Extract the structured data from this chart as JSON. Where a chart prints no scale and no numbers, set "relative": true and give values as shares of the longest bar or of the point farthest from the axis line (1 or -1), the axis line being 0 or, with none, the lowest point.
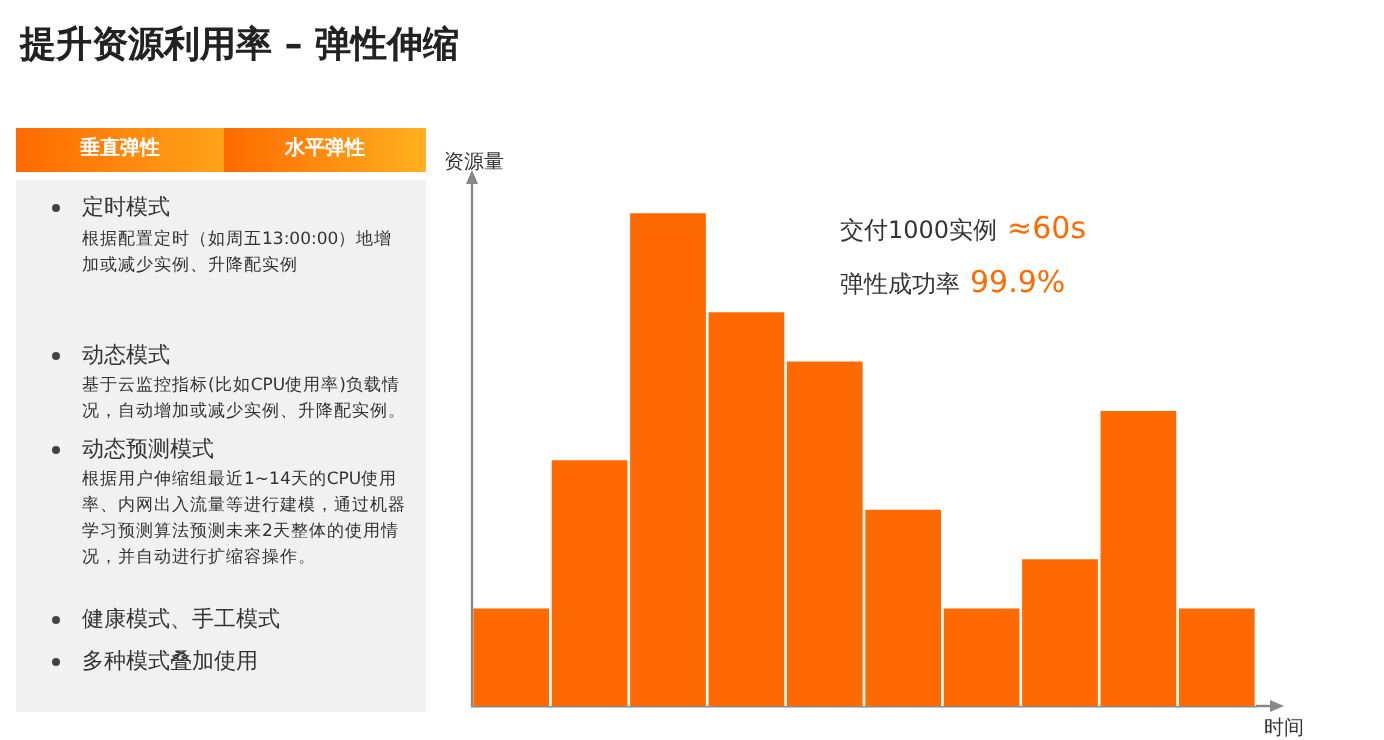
{
  "chart_data": {
    "type": "bar",
    "title": "提升资源利用率 – 弹性伸缩",
    "xlabel": "时间",
    "ylabel": "资源量",
    "relative": true,
    "grid": false,
    "legend": false,
    "categories": [
      null,
      null,
      null,
      null,
      null,
      null,
      null,
      null,
      null,
      null
    ],
    "values": [
      0.2,
      0.5,
      1,
      0.8,
      0.7,
      0.4,
      0.2,
      0.3,
      0.6,
      0.2
    ],
    "color": "#ff6a00",
    "annotations": [
      "垂直弹性",
      "水平弹性",
      "定时模式",
      "根据配置定时（如周五13:00:00）地增加或减少实例、升降配实例",
      "动态模式",
      "基于云监控指标(比如CPU使用率)负载情况，自动增加或减少实例、升降配实例。",
      "动态预测模式",
      "根据用户伸缩组最近1~14天的CPU使用率、内网出入流量等进行建模，通过机器学习预测算法预测未来2天整体的使用情况，并自动进行扩缩容操作。",
      "健康模式、手工模式",
      "多种模式叠加使用",
      "交付1000实例",
      "≈60s",
      "弹性成功率",
      "99.9%"
    ]
  }
}
